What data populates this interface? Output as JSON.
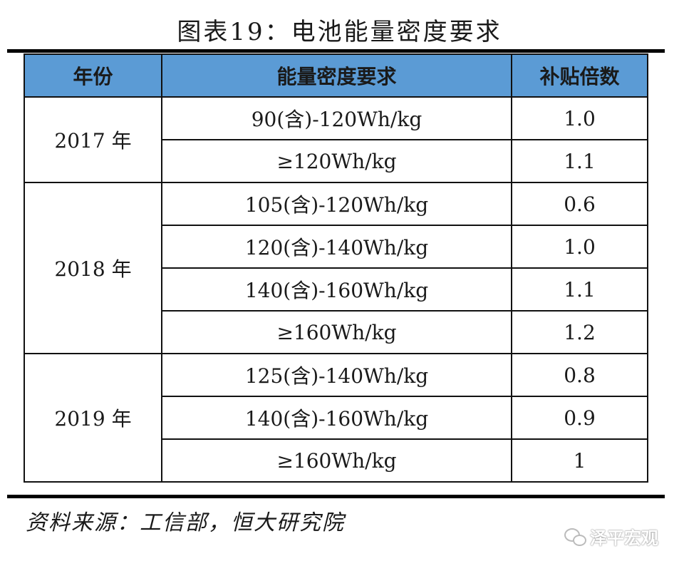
{
  "title": "图表19：电池能量密度要求",
  "table": {
    "headers": [
      "年份",
      "能量密度要求",
      "补贴倍数"
    ],
    "groups": [
      {
        "year": "2017 年",
        "rows": [
          {
            "requirement": "90(含)-120Wh/kg",
            "multiplier": "1.0"
          },
          {
            "requirement": "≥120Wh/kg",
            "multiplier": "1.1"
          }
        ]
      },
      {
        "year": "2018 年",
        "rows": [
          {
            "requirement": "105(含)-120Wh/kg",
            "multiplier": "0.6"
          },
          {
            "requirement": "120(含)-140Wh/kg",
            "multiplier": "1.0"
          },
          {
            "requirement": "140(含)-160Wh/kg",
            "multiplier": "1.1"
          },
          {
            "requirement": "≥160Wh/kg",
            "multiplier": "1.2"
          }
        ]
      },
      {
        "year": "2019 年",
        "rows": [
          {
            "requirement": "125(含)-140Wh/kg",
            "multiplier": "0.8"
          },
          {
            "requirement": "140(含)-160Wh/kg",
            "multiplier": "0.9"
          },
          {
            "requirement": "≥160Wh/kg",
            "multiplier": "1"
          }
        ]
      }
    ]
  },
  "source": "资料来源：工信部，恒大研究院",
  "watermark": {
    "icon": "wechat-icon",
    "text": "泽平宏观"
  },
  "colors": {
    "header_bg": "#5b9bd5",
    "rule": "#000000"
  }
}
